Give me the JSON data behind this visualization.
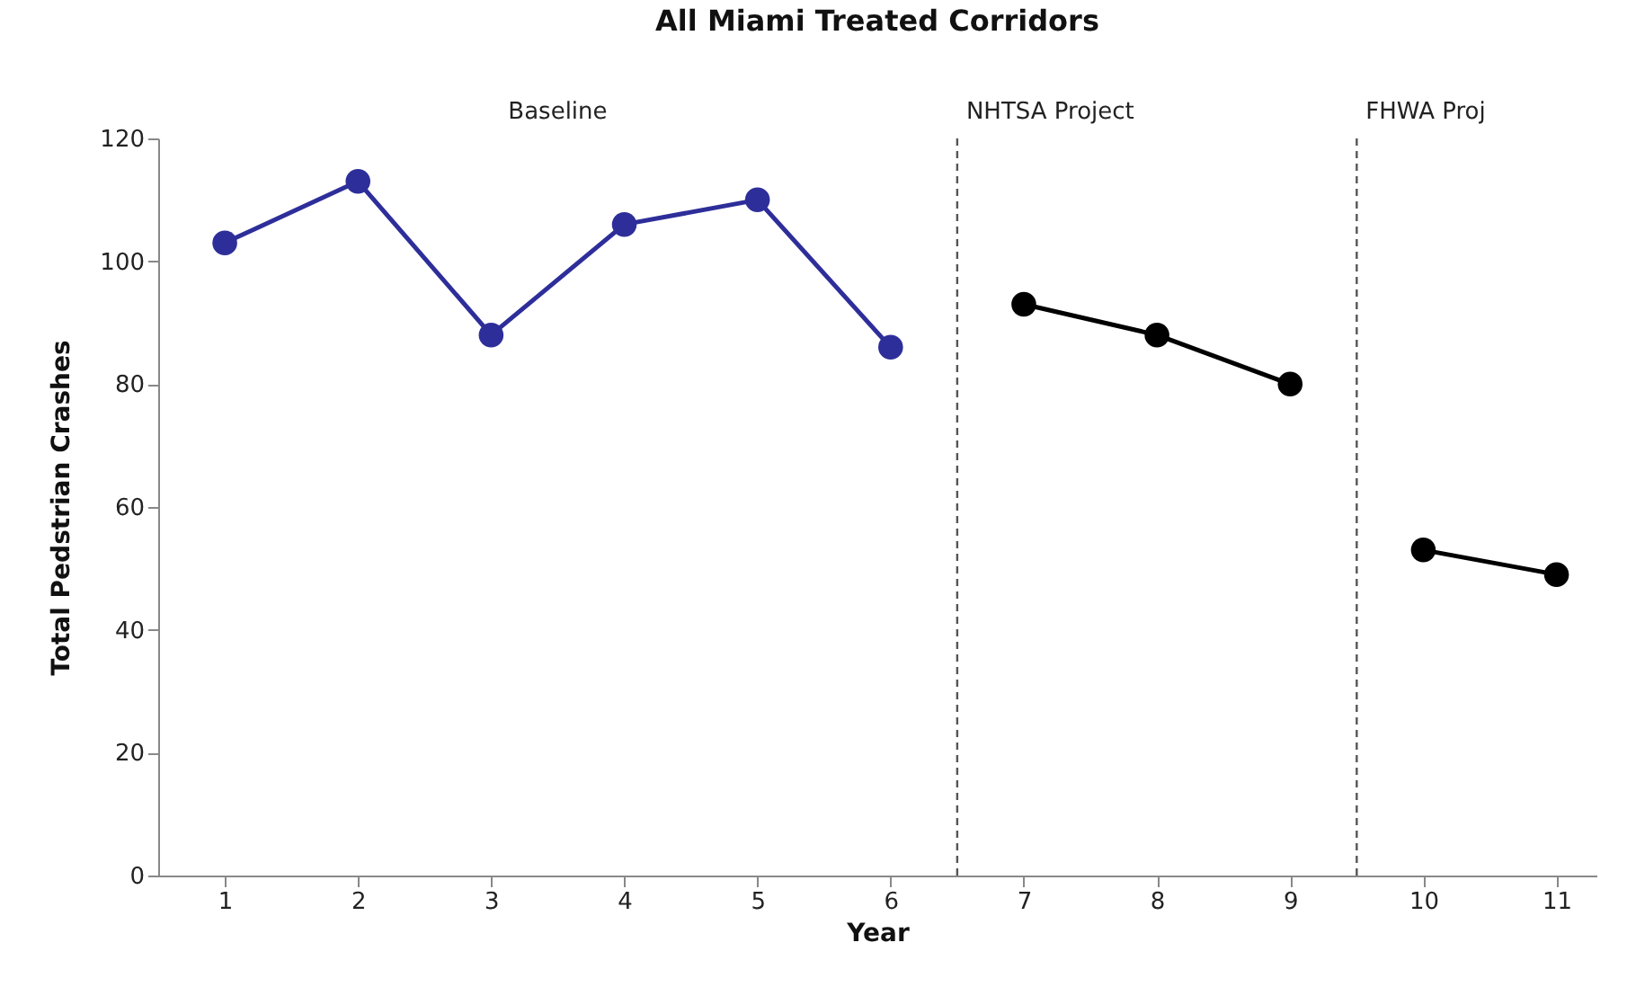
{
  "chart_data": {
    "type": "line",
    "title": "All Miami Treated Corridors",
    "xlabel": "Year",
    "ylabel": "Total Pedstrian Crashes",
    "xlim": [
      0.5,
      11.3
    ],
    "xticks": [
      1,
      2,
      3,
      4,
      5,
      6,
      7,
      8,
      9,
      10,
      11
    ],
    "ylim": [
      0,
      120
    ],
    "yticks": [
      0,
      20,
      40,
      60,
      80,
      100,
      120
    ],
    "series": [
      {
        "color": "#2e2e9a",
        "x": [
          1,
          2,
          3,
          4,
          5,
          6
        ],
        "values": [
          103,
          113,
          88,
          106,
          110,
          86
        ]
      },
      {
        "color": "#000000",
        "x": [
          7,
          8,
          9
        ],
        "values": [
          93,
          88,
          80
        ]
      },
      {
        "color": "#000000",
        "x": [
          10,
          11
        ],
        "values": [
          53,
          49
        ]
      }
    ],
    "marker": "circle",
    "grid": false,
    "legend": false,
    "ref_lines": [
      {
        "axis": "x",
        "value": 6.5,
        "line_style": "dashed",
        "color": "#555555"
      },
      {
        "axis": "x",
        "value": 9.5,
        "line_style": "dashed",
        "color": "#555555"
      }
    ],
    "annotations": [
      "Baseline",
      "NHTSA Project",
      "FHWA Proj"
    ]
  }
}
